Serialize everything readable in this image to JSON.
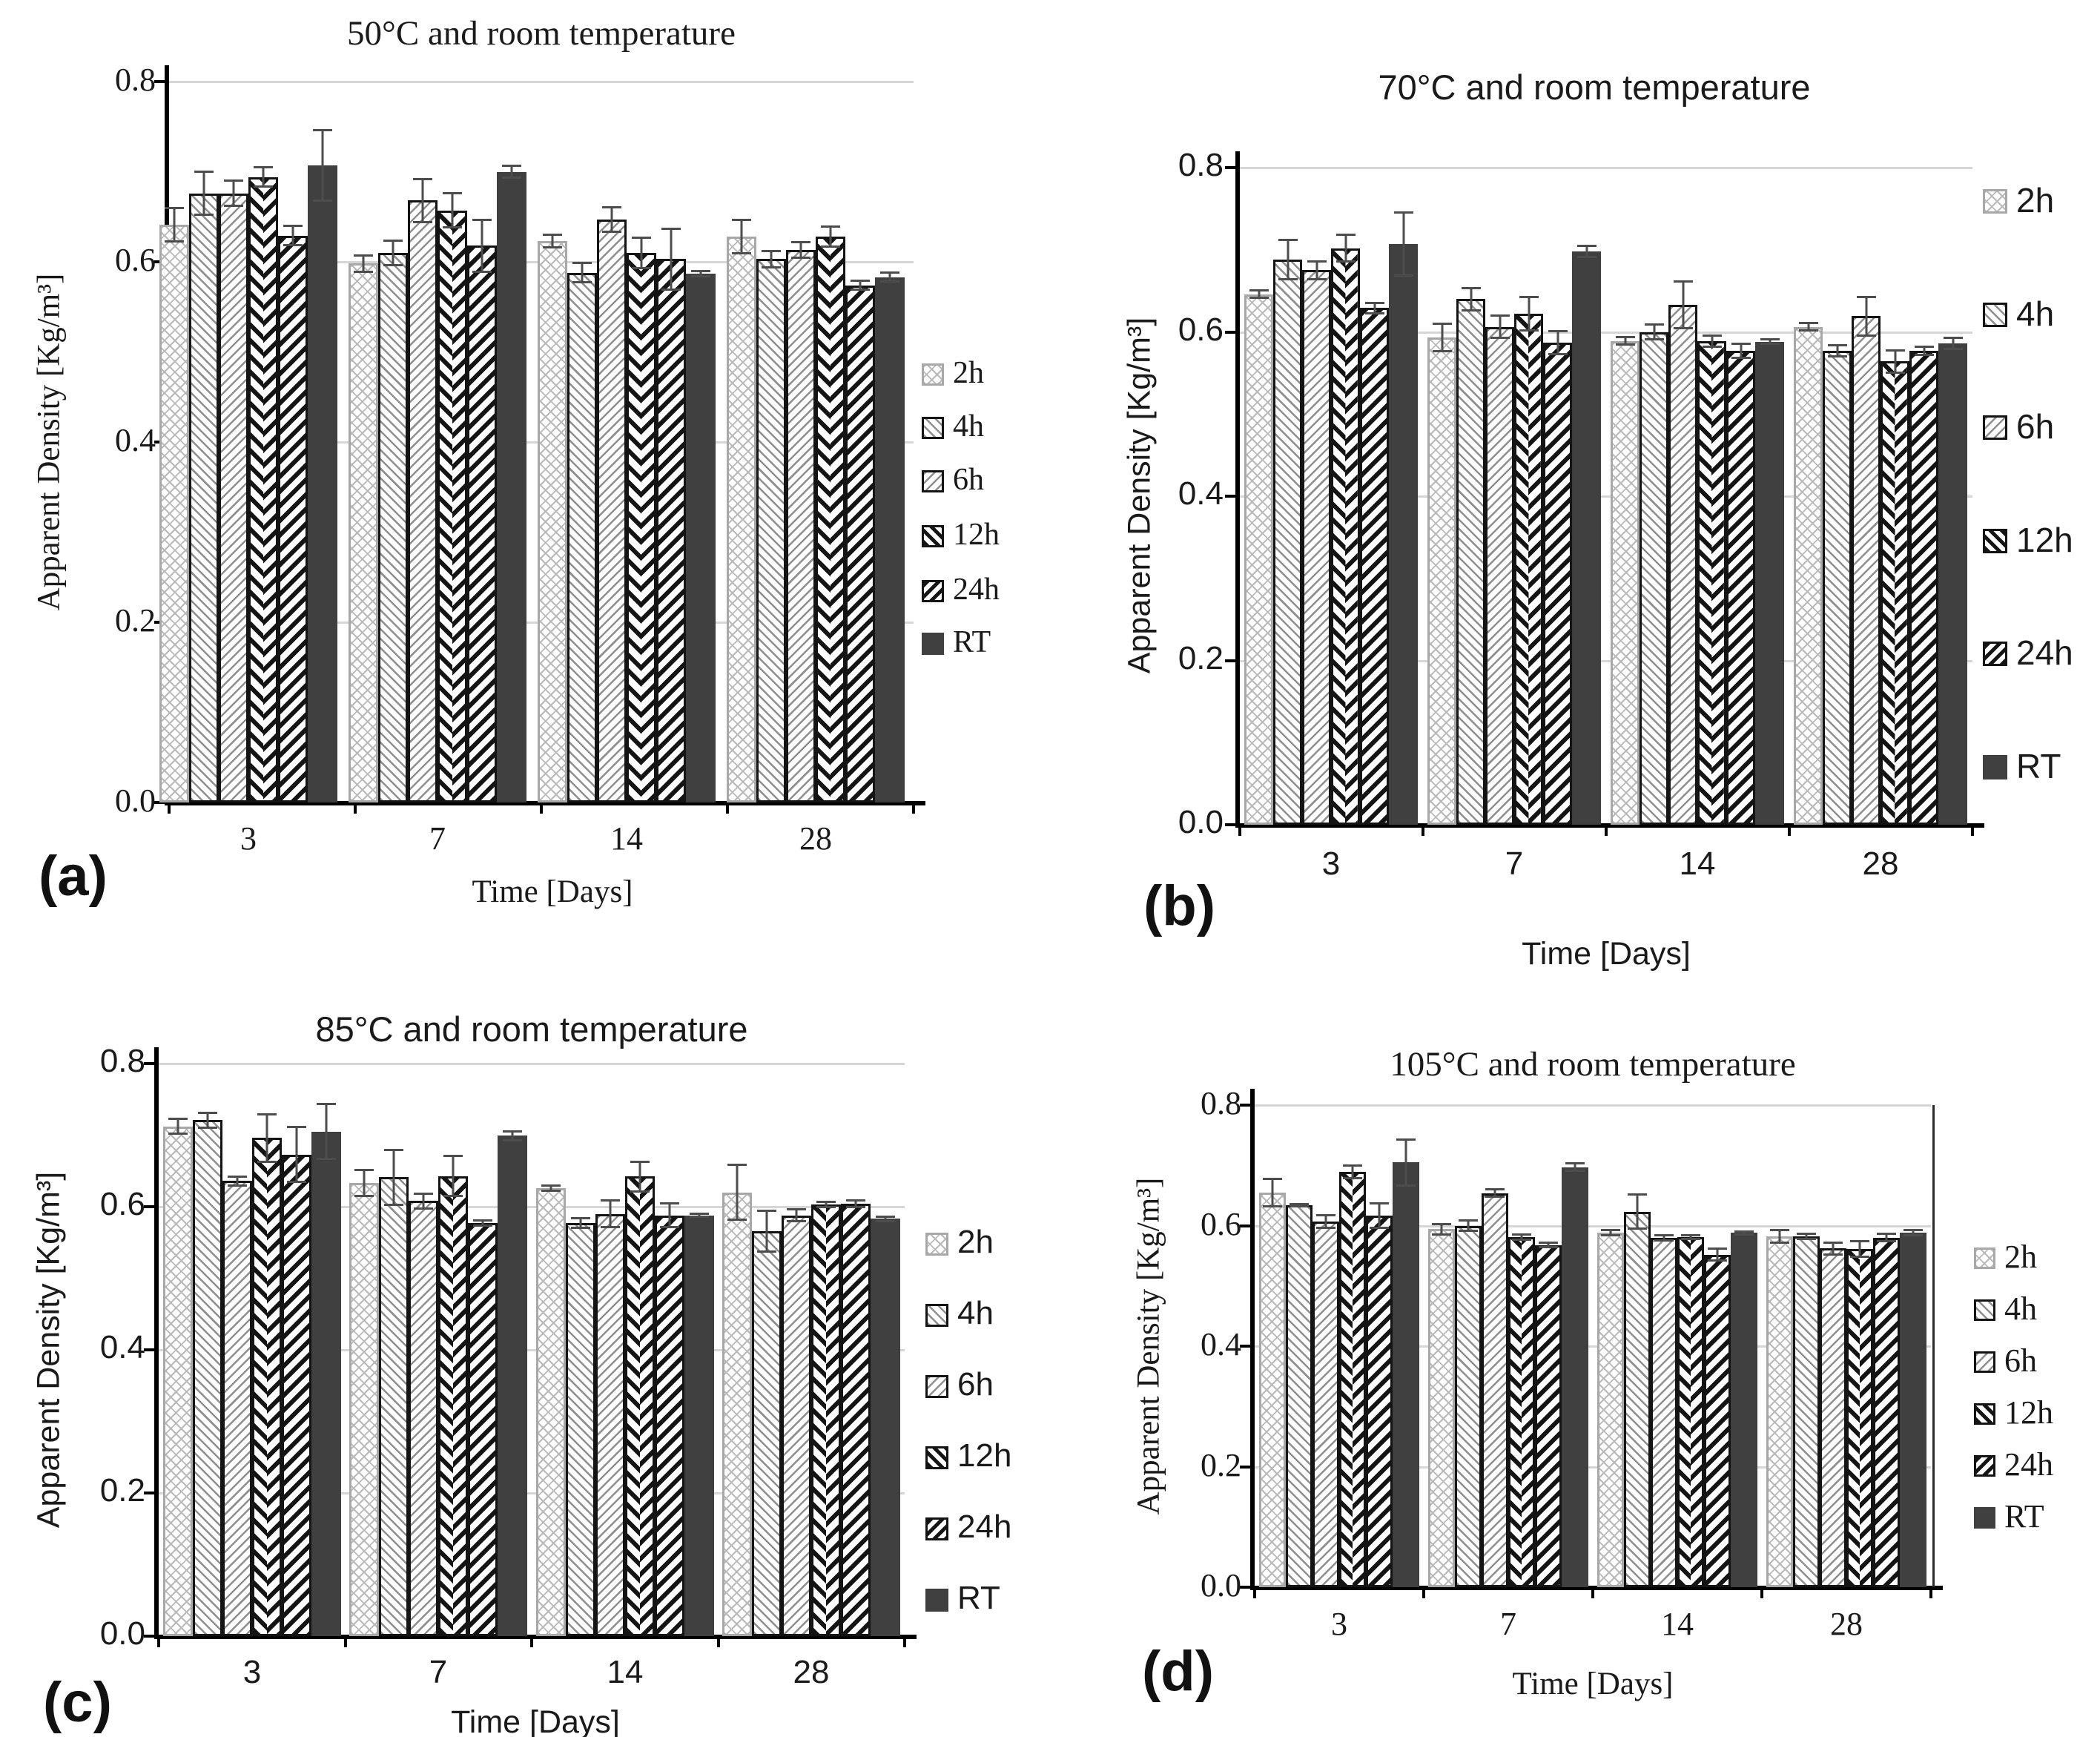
{
  "chart_data": [
    {
      "type": "bar",
      "panel_label": "(a)",
      "title": "50°C and room temperature",
      "xlabel": "Time [Days]",
      "ylabel": "Apparent Density [Kg/m³]",
      "categories": [
        "3",
        "7",
        "14",
        "28"
      ],
      "ytick_labels": [
        "0.8",
        "0.6",
        "0.4",
        "0.2",
        "0.0"
      ],
      "ylim": [
        0,
        0.8
      ],
      "grid": "horizontal",
      "legend_position": "right",
      "font_style": "serif",
      "series": [
        {
          "name": "2h",
          "values": [
            0.641,
            0.598,
            0.623,
            0.628
          ],
          "errors": [
            0.02,
            0.01,
            0.008,
            0.02
          ]
        },
        {
          "name": "4h",
          "values": [
            0.676,
            0.61,
            0.588,
            0.603
          ],
          "errors": [
            0.025,
            0.015,
            0.012,
            0.01
          ]
        },
        {
          "name": "6h",
          "values": [
            0.676,
            0.668,
            0.647,
            0.613
          ],
          "errors": [
            0.015,
            0.025,
            0.015,
            0.01
          ]
        },
        {
          "name": "12h",
          "values": [
            0.694,
            0.657,
            0.61,
            0.628
          ],
          "errors": [
            0.012,
            0.02,
            0.018,
            0.012
          ]
        },
        {
          "name": "24h",
          "values": [
            0.629,
            0.618,
            0.603,
            0.574
          ],
          "errors": [
            0.012,
            0.03,
            0.035,
            0.006
          ]
        },
        {
          "name": "RT",
          "values": [
            0.707,
            0.7,
            0.587,
            0.583
          ],
          "errors": [
            0.04,
            0.008,
            0.004,
            0.006
          ]
        }
      ]
    },
    {
      "type": "bar",
      "panel_label": "(b)",
      "title": "70°C and room temperature",
      "xlabel": "Time [Days]",
      "ylabel": "Apparent Density [Kg/m³]",
      "categories": [
        "3",
        "7",
        "14",
        "28"
      ],
      "ytick_labels": [
        "0.8",
        "0.6",
        "0.4",
        "0.2",
        "0.0"
      ],
      "ylim": [
        0,
        0.8
      ],
      "grid": "horizontal",
      "legend_position": "right",
      "font_style": "sans",
      "series": [
        {
          "name": "2h",
          "values": [
            0.646,
            0.593,
            0.589,
            0.606
          ],
          "errors": [
            0.006,
            0.018,
            0.006,
            0.006
          ]
        },
        {
          "name": "4h",
          "values": [
            0.688,
            0.64,
            0.6,
            0.577
          ],
          "errors": [
            0.025,
            0.015,
            0.01,
            0.008
          ]
        },
        {
          "name": "6h",
          "values": [
            0.675,
            0.606,
            0.633,
            0.619
          ],
          "errors": [
            0.012,
            0.015,
            0.03,
            0.025
          ]
        },
        {
          "name": "12h",
          "values": [
            0.702,
            0.622,
            0.589,
            0.564
          ],
          "errors": [
            0.018,
            0.022,
            0.008,
            0.015
          ]
        },
        {
          "name": "24h",
          "values": [
            0.629,
            0.587,
            0.577,
            0.577
          ],
          "errors": [
            0.008,
            0.015,
            0.01,
            0.006
          ]
        },
        {
          "name": "RT",
          "values": [
            0.707,
            0.698,
            0.588,
            0.586
          ],
          "errors": [
            0.04,
            0.008,
            0.004,
            0.008
          ]
        }
      ]
    },
    {
      "type": "bar",
      "panel_label": "(c)",
      "title": "85°C and room temperature",
      "xlabel": "Time [Days]",
      "ylabel": "Apparent Density [Kg/m³]",
      "categories": [
        "3",
        "7",
        "14",
        "28"
      ],
      "ytick_labels": [
        "0.8",
        "0.6",
        "0.4",
        "0.2",
        "0.0"
      ],
      "ylim": [
        0,
        0.8
      ],
      "grid": "horizontal",
      "legend_position": "right",
      "font_style": "sans",
      "series": [
        {
          "name": "2h",
          "values": [
            0.712,
            0.633,
            0.626,
            0.62
          ],
          "errors": [
            0.012,
            0.02,
            0.005,
            0.04
          ]
        },
        {
          "name": "4h",
          "values": [
            0.721,
            0.641,
            0.577,
            0.566
          ],
          "errors": [
            0.012,
            0.04,
            0.008,
            0.03
          ]
        },
        {
          "name": "6h",
          "values": [
            0.636,
            0.608,
            0.59,
            0.588
          ],
          "errors": [
            0.008,
            0.012,
            0.02,
            0.01
          ]
        },
        {
          "name": "12h",
          "values": [
            0.696,
            0.643,
            0.642,
            0.603
          ],
          "errors": [
            0.035,
            0.03,
            0.022,
            0.005
          ]
        },
        {
          "name": "24h",
          "values": [
            0.673,
            0.577,
            0.588,
            0.604
          ],
          "errors": [
            0.04,
            0.005,
            0.018,
            0.006
          ]
        },
        {
          "name": "RT",
          "values": [
            0.705,
            0.699,
            0.588,
            0.583
          ],
          "errors": [
            0.04,
            0.008,
            0.004,
            0.005
          ]
        }
      ]
    },
    {
      "type": "bar",
      "panel_label": "(d)",
      "title": "105°C and room temperature",
      "xlabel": "Time [Days]",
      "ylabel": "Apparent Density [Kg/m³]",
      "categories": [
        "3",
        "7",
        "14",
        "28"
      ],
      "ytick_labels": [
        "0.8",
        "0.6",
        "0.4",
        "0.2",
        "0.0"
      ],
      "ylim": [
        0,
        0.8
      ],
      "grid": "horizontal",
      "legend_position": "right",
      "font_style": "serif",
      "series": [
        {
          "name": "2h",
          "values": [
            0.655,
            0.594,
            0.588,
            0.582
          ],
          "errors": [
            0.025,
            0.01,
            0.006,
            0.012
          ]
        },
        {
          "name": "4h",
          "values": [
            0.634,
            0.6,
            0.623,
            0.582
          ],
          "errors": [
            0.004,
            0.01,
            0.03,
            0.006
          ]
        },
        {
          "name": "6h",
          "values": [
            0.607,
            0.654,
            0.58,
            0.562
          ],
          "errors": [
            0.012,
            0.008,
            0.006,
            0.012
          ]
        },
        {
          "name": "12h",
          "values": [
            0.689,
            0.581,
            0.581,
            0.561
          ],
          "errors": [
            0.012,
            0.006,
            0.005,
            0.015
          ]
        },
        {
          "name": "24h",
          "values": [
            0.617,
            0.568,
            0.552,
            0.58
          ],
          "errors": [
            0.022,
            0.006,
            0.012,
            0.008
          ]
        },
        {
          "name": "RT",
          "values": [
            0.705,
            0.697,
            0.588,
            0.588
          ],
          "errors": [
            0.04,
            0.008,
            0.004,
            0.006
          ]
        }
      ]
    }
  ]
}
